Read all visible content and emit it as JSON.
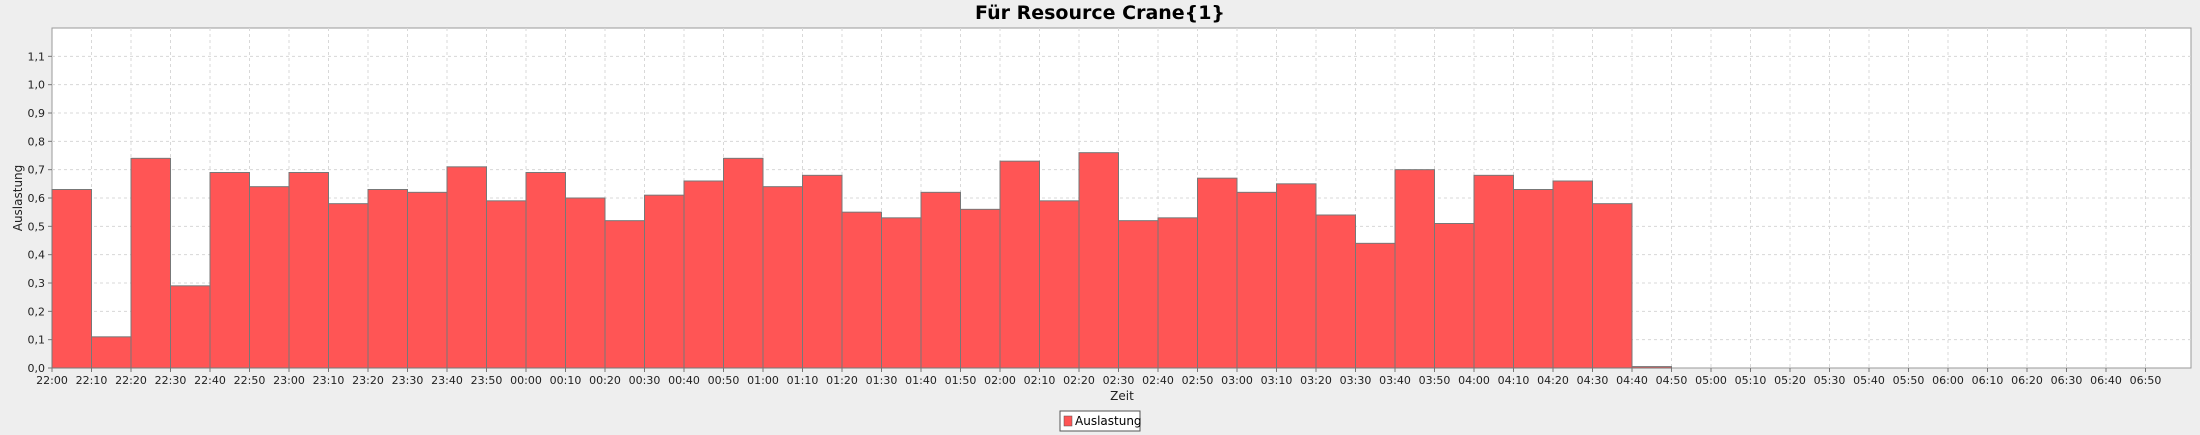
{
  "chart_data": {
    "type": "bar",
    "title": "Für Resource Crane{1}",
    "xlabel": "Zeit",
    "ylabel": "Auslastung",
    "ylim": [
      0,
      1.2
    ],
    "y_ticks": [
      "0,0",
      "0,1",
      "0,2",
      "0,3",
      "0,4",
      "0,5",
      "0,6",
      "0,7",
      "0,8",
      "0,9",
      "1,0",
      "1,1"
    ],
    "grid": true,
    "legend_position": "bottom-center",
    "categories": [
      "22:00",
      "22:10",
      "22:20",
      "22:30",
      "22:40",
      "22:50",
      "23:00",
      "23:10",
      "23:20",
      "23:30",
      "23:40",
      "23:50",
      "00:00",
      "00:10",
      "00:20",
      "00:30",
      "00:40",
      "00:50",
      "01:00",
      "01:10",
      "01:20",
      "01:30",
      "01:40",
      "01:50",
      "02:00",
      "02:10",
      "02:20",
      "02:30",
      "02:40",
      "02:50",
      "03:00",
      "03:10",
      "03:20",
      "03:30",
      "03:40",
      "03:50",
      "04:00",
      "04:10",
      "04:20",
      "04:30",
      "04:40",
      "04:50",
      "05:00",
      "05:10",
      "05:20",
      "05:30",
      "05:40",
      "05:50",
      "06:00",
      "06:10",
      "06:20",
      "06:30",
      "06:40",
      "06:50"
    ],
    "series": [
      {
        "name": "Auslastung",
        "color": "#ff5555",
        "values": [
          0.63,
          0.11,
          0.74,
          0.29,
          0.69,
          0.64,
          0.69,
          0.58,
          0.63,
          0.62,
          0.71,
          0.59,
          0.69,
          0.6,
          0.52,
          0.61,
          0.66,
          0.74,
          0.64,
          0.68,
          0.55,
          0.53,
          0.62,
          0.56,
          0.73,
          0.59,
          0.76,
          0.52,
          0.53,
          0.67,
          0.62,
          0.65,
          0.54,
          0.44,
          0.7,
          0.51,
          0.68,
          0.63,
          0.66,
          0.58,
          0.005,
          0,
          0,
          0,
          0,
          0,
          0,
          0,
          0,
          0,
          0,
          0,
          0,
          0
        ]
      }
    ]
  }
}
